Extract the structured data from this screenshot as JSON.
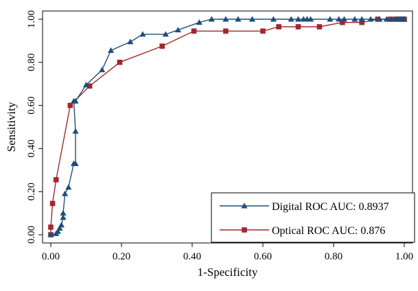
{
  "chart_data": {
    "type": "line",
    "title": "",
    "xlabel": "1-Specificity",
    "ylabel": "Sensitivity",
    "xlim": [
      0,
      1
    ],
    "ylim": [
      0,
      1
    ],
    "xticks": [
      "0.00",
      "0.20",
      "0.40",
      "0.60",
      "0.80",
      "1.00"
    ],
    "yticks": [
      "0.00",
      "0.20",
      "0.40",
      "0.60",
      "0.80",
      "1.00"
    ],
    "grid": false,
    "legend_position": "bottom-right",
    "series": [
      {
        "name": "Digital ROC AUC: 0.8937",
        "color": "#1f4e79",
        "marker": "triangle",
        "x": [
          0.0,
          0.015,
          0.02,
          0.025,
          0.03,
          0.035,
          0.035,
          0.04,
          0.05,
          0.065,
          0.07,
          0.07,
          0.065,
          0.07,
          0.1,
          0.145,
          0.17,
          0.225,
          0.26,
          0.325,
          0.36,
          0.42,
          0.455,
          0.495,
          0.53,
          0.57,
          0.63,
          0.68,
          0.7,
          0.715,
          0.725,
          0.735,
          0.79,
          0.815,
          0.83,
          0.86,
          0.88,
          0.905,
          0.93,
          0.95,
          0.965,
          0.975,
          0.98,
          0.985,
          0.99,
          0.995,
          1.0
        ],
        "y": [
          0.0,
          0.005,
          0.015,
          0.03,
          0.045,
          0.08,
          0.1,
          0.19,
          0.22,
          0.33,
          0.33,
          0.48,
          0.62,
          0.62,
          0.695,
          0.765,
          0.855,
          0.895,
          0.93,
          0.93,
          0.95,
          0.985,
          1.0,
          1.0,
          1.0,
          1.0,
          1.0,
          1.0,
          1.0,
          1.0,
          1.0,
          1.0,
          1.0,
          1.0,
          1.0,
          1.0,
          1.0,
          1.0,
          1.0,
          1.0,
          1.0,
          1.0,
          1.0,
          1.0,
          1.0,
          1.0,
          1.0
        ]
      },
      {
        "name": "Optical ROC AUC: 0.876",
        "color": "#a0282d",
        "marker": "square",
        "x": [
          0.0,
          0.0,
          0.005,
          0.015,
          0.055,
          0.11,
          0.195,
          0.315,
          0.405,
          0.495,
          0.6,
          0.645,
          0.7,
          0.76,
          0.825,
          0.88,
          0.925,
          0.96,
          0.975,
          0.985,
          0.995,
          1.0
        ],
        "y": [
          0.0,
          0.035,
          0.145,
          0.255,
          0.6,
          0.69,
          0.8,
          0.875,
          0.945,
          0.945,
          0.945,
          0.965,
          0.965,
          0.965,
          0.985,
          0.985,
          1.0,
          1.0,
          1.0,
          1.0,
          1.0,
          1.0
        ]
      }
    ]
  }
}
